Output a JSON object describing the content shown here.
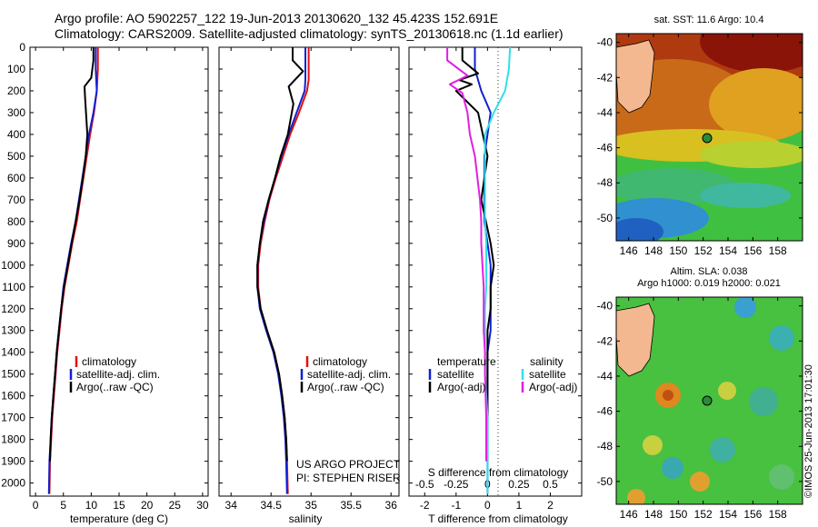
{
  "header": {
    "line1": "Argo profile: AO 5902257_122 19-Jun-2013 20130620_132 45.423S 152.691E",
    "line2": "Climatology: CARS2009. Satellite-adjusted climatology: synTS_20130618.nc (1.1d earlier)"
  },
  "colors": {
    "climatology": "#e01010",
    "satellite": "#1020d0",
    "argo": "#000000",
    "satellite_s": "#30e0e8",
    "argo_s": "#e020e0"
  },
  "panels": {
    "temperature": {
      "xlabel": "temperature (deg C)",
      "xticks": [
        "0",
        "5",
        "10",
        "15",
        "20",
        "25",
        "30"
      ],
      "legend": [
        "climatology",
        "satellite-adj. clim.",
        "Argo(..raw -QC)"
      ]
    },
    "salinity": {
      "xlabel": "salinity",
      "xticks": [
        "34",
        "34.5",
        "35",
        "35.5",
        "36"
      ],
      "legend": [
        "climatology",
        "satellite-adj. clim.",
        "Argo(..raw -QC)"
      ],
      "note1": "US ARGO PROJECT",
      "note2": "PI: STEPHEN RISER"
    },
    "difference": {
      "xlabel": "T difference from climatology",
      "xticks": [
        "-2",
        "-1",
        "0",
        "1",
        "2"
      ],
      "toplabel": "S difference from climatology",
      "topticks": [
        "-0.5",
        "-0.25",
        "0",
        "0.25",
        "0.5"
      ],
      "legend_t_title": "temperature",
      "legend_s_title": "salinity",
      "legend_items": [
        "satellite",
        "Argo(-adj)",
        "satellite",
        "Argo(-adj)"
      ]
    }
  },
  "yticks": [
    "0",
    "100",
    "200",
    "300",
    "400",
    "500",
    "600",
    "700",
    "800",
    "900",
    "1000",
    "1100",
    "1200",
    "1300",
    "1400",
    "1500",
    "1600",
    "1700",
    "1800",
    "1900",
    "2000"
  ],
  "maps": {
    "sst": {
      "title": "sat. SST: 11.6 Argo: 10.4"
    },
    "sla": {
      "title1": "Altim. SLA: 0.038",
      "title2": "Argo h1000: 0.019 h2000: 0.021"
    },
    "yticks": [
      "-40",
      "-42",
      "-44",
      "-46",
      "-48",
      "-50"
    ],
    "xticks": [
      "146",
      "148",
      "150",
      "152",
      "154",
      "156",
      "158"
    ],
    "float_lon": 152.691,
    "float_lat": -45.423,
    "side_label": "©IMOS 25-Jun-2013 17:01:30"
  },
  "chart_data": [
    {
      "type": "line",
      "title": "",
      "xlabel": "temperature (deg C)",
      "ylabel": "",
      "xlim": [
        -1,
        31
      ],
      "ylim": [
        2060,
        0
      ],
      "y_reversed": true,
      "series": [
        {
          "name": "climatology",
          "x": [
            11.2,
            11.2,
            11.1,
            11.0,
            10.5,
            9.8,
            9.2,
            8.6,
            8.0,
            7.4,
            6.6,
            5.9,
            5.2,
            4.7,
            4.3,
            3.9,
            3.6,
            3.3,
            3.0,
            2.8,
            2.6,
            2.5
          ],
          "y": [
            0,
            100,
            150,
            200,
            300,
            400,
            500,
            600,
            700,
            800,
            900,
            1000,
            1100,
            1200,
            1300,
            1400,
            1500,
            1600,
            1700,
            1800,
            1900,
            2050
          ]
        },
        {
          "name": "satellite-adj. clim.",
          "x": [
            10.8,
            10.8,
            10.9,
            11.0,
            10.4,
            9.6,
            9.0,
            8.4,
            7.8,
            7.2,
            6.4,
            5.7,
            5.0,
            4.6,
            4.2,
            3.8,
            3.5,
            3.2,
            2.9,
            2.7,
            2.5,
            2.4
          ],
          "y": [
            0,
            100,
            150,
            200,
            300,
            400,
            500,
            600,
            700,
            800,
            900,
            1000,
            1100,
            1200,
            1300,
            1400,
            1500,
            1600,
            1700,
            1800,
            1900,
            2050
          ]
        },
        {
          "name": "Argo(..raw -QC)",
          "x": [
            10.4,
            10.4,
            10.0,
            8.8,
            8.9,
            9.3,
            9.0,
            8.5,
            7.9,
            7.2,
            6.5,
            5.8,
            5.1,
            4.6,
            4.2,
            3.8,
            3.5,
            3.2,
            2.9,
            2.7,
            2.6
          ],
          "y": [
            0,
            60,
            140,
            180,
            230,
            400,
            500,
            600,
            700,
            800,
            900,
            1000,
            1100,
            1200,
            1300,
            1400,
            1500,
            1600,
            1700,
            1800,
            1900
          ]
        }
      ]
    },
    {
      "type": "line",
      "title": "",
      "xlabel": "salinity",
      "ylabel": "",
      "xlim": [
        33.85,
        36.1
      ],
      "ylim": [
        2060,
        0
      ],
      "y_reversed": true,
      "series": [
        {
          "name": "climatology",
          "x": [
            34.97,
            34.97,
            34.97,
            34.95,
            34.85,
            34.74,
            34.65,
            34.56,
            34.48,
            34.42,
            34.37,
            34.34,
            34.34,
            34.37,
            34.45,
            34.54,
            34.6,
            34.64,
            34.67,
            34.69,
            34.7,
            34.71
          ],
          "y": [
            0,
            100,
            150,
            200,
            300,
            400,
            500,
            600,
            700,
            800,
            900,
            1000,
            1100,
            1200,
            1300,
            1400,
            1500,
            1600,
            1700,
            1800,
            1900,
            2050
          ]
        },
        {
          "name": "satellite-adj. clim.",
          "x": [
            34.93,
            34.93,
            34.93,
            34.92,
            34.82,
            34.72,
            34.63,
            34.55,
            34.47,
            34.41,
            34.36,
            34.33,
            34.33,
            34.36,
            34.44,
            34.53,
            34.59,
            34.63,
            34.66,
            34.68,
            34.69,
            34.7
          ],
          "y": [
            0,
            100,
            150,
            200,
            300,
            400,
            500,
            600,
            700,
            800,
            900,
            1000,
            1100,
            1200,
            1300,
            1400,
            1500,
            1600,
            1700,
            1800,
            1900,
            2050
          ]
        },
        {
          "name": "Argo(..raw -QC)",
          "x": [
            34.77,
            34.77,
            34.9,
            34.72,
            34.78,
            34.71,
            34.62,
            34.55,
            34.47,
            34.4,
            34.36,
            34.33,
            34.33,
            34.37,
            34.45,
            34.54,
            34.6,
            34.64,
            34.67,
            34.69,
            34.7
          ],
          "y": [
            0,
            60,
            110,
            180,
            260,
            400,
            500,
            600,
            700,
            800,
            900,
            1000,
            1100,
            1200,
            1300,
            1400,
            1500,
            1600,
            1700,
            1800,
            1900
          ]
        }
      ]
    },
    {
      "type": "line",
      "title": "",
      "xlabel": "T difference from climatology",
      "ylabel": "",
      "xlim": [
        -2.5,
        3.0
      ],
      "ylim": [
        2060,
        0
      ],
      "y_reversed": true,
      "secondary_xlabel": "S difference from climatology",
      "secondary_xlim": [
        -0.625,
        0.75
      ],
      "series": [
        {
          "name": "temperature satellite",
          "x": [
            -0.4,
            -0.4,
            -0.2,
            0.1,
            0.0,
            -0.1,
            -0.1,
            -0.1,
            -0.1,
            0.0,
            0.1,
            0.1,
            0.1,
            0.1,
            0.0,
            0.0,
            0.0,
            0.0,
            0.0,
            0.0,
            0.0
          ],
          "y": [
            0,
            100,
            200,
            300,
            400,
            500,
            600,
            700,
            800,
            900,
            1000,
            1100,
            1200,
            1300,
            1400,
            1500,
            1600,
            1700,
            1800,
            1900,
            2050
          ]
        },
        {
          "name": "temperature Argo(-adj)",
          "x": [
            -0.8,
            -0.8,
            -0.3,
            -0.9,
            -0.5,
            -1.0,
            -0.3,
            0.0,
            -0.2,
            0.1,
            0.2,
            0.1,
            0.1,
            0.0,
            0.0,
            0.0,
            0.0,
            0.0,
            0.0,
            0.0
          ],
          "y": [
            0,
            60,
            120,
            150,
            170,
            200,
            300,
            500,
            700,
            900,
            1000,
            1100,
            1200,
            1300,
            1400,
            1500,
            1600,
            1700,
            1800,
            1900
          ]
        },
        {
          "name": "salinity satellite",
          "x": [
            0.18,
            0.17,
            0.14,
            0.05,
            -0.02,
            -0.02,
            -0.02,
            -0.02,
            -0.02,
            -0.01,
            -0.01,
            -0.01,
            -0.02,
            -0.02,
            -0.02,
            -0.02,
            -0.01,
            0.0,
            0.0,
            0.0,
            0.0
          ],
          "y": [
            0,
            100,
            200,
            300,
            400,
            500,
            600,
            700,
            800,
            900,
            1000,
            1100,
            1200,
            1300,
            1400,
            1500,
            1600,
            1700,
            1800,
            1900,
            2050
          ]
        },
        {
          "name": "salinity Argo(-adj)",
          "x": [
            -0.32,
            -0.32,
            -0.16,
            -0.3,
            -0.2,
            -0.16,
            -0.14,
            -0.1,
            -0.08,
            -0.06,
            -0.05,
            -0.05,
            -0.04,
            -0.03,
            -0.03,
            -0.03,
            -0.02,
            -0.02,
            -0.01,
            -0.01
          ],
          "y": [
            0,
            60,
            130,
            170,
            210,
            300,
            400,
            500,
            600,
            700,
            800,
            900,
            1000,
            1100,
            1200,
            1300,
            1400,
            1500,
            1700,
            1900
          ]
        }
      ]
    }
  ]
}
